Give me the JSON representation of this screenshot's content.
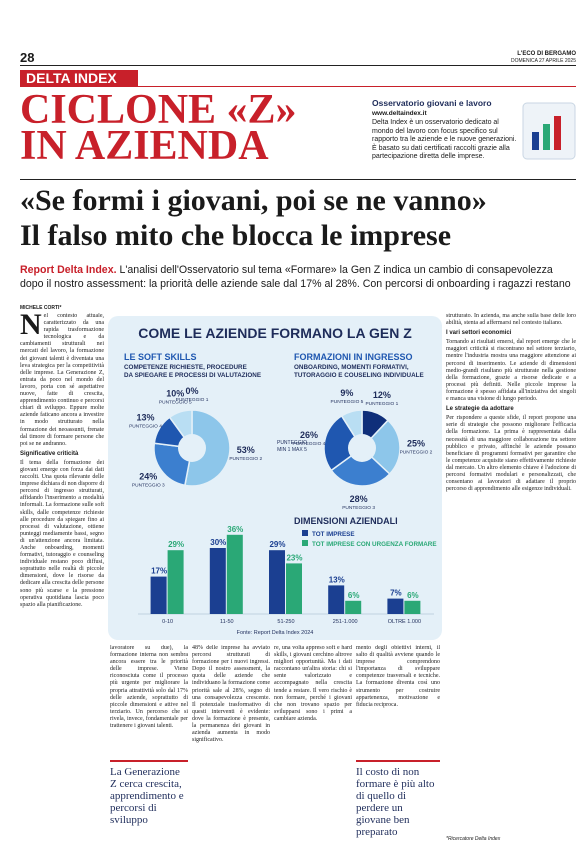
{
  "header": {
    "page_number": "28",
    "publication": "L'ECO DI BERGAMO",
    "date": "DOMENICA 27 APRILE 2025",
    "section": "DELTA INDEX"
  },
  "headline": [
    "CICLONE «Z»",
    "IN AZIENDA"
  ],
  "sidebar": {
    "title": "Osservatorio giovani e lavoro",
    "url": "www.deltaindex.it",
    "text": "Delta Index è un osservatorio dedicato al mondo del lavoro con focus specifico sul rapporto tra le aziende e le nuove generazioni. È basato su dati certificati raccolti grazie alla partecipazione diretta delle imprese."
  },
  "title": "«Se formi i giovani, poi se ne vanno»",
  "subtitle": "Il falso mito che blocca le imprese",
  "lead": {
    "label": "Report Delta Index.",
    "text": "L'analisi dell'Osservatorio sul tema «Formare» la Gen Z indica un cambio di consapevolezza dopo il nostro assessment: la priorità delle aziende sale dal 17% al 28%. Con percorsi di onboarding i ragazzi restano"
  },
  "byline": "MICHELE CORTI*",
  "infographic": {
    "title": "COME LE AZIENDE FORMANO LA GEN Z",
    "pies": [
      {
        "type": "pie",
        "title": "LE SOFT SKILLS",
        "subtitle": [
          "COMPETENZE RICHIESTE, PROCEDURE",
          "DA SPIEGARE E PROCESSI DI VALUTAZIONE"
        ],
        "categories": [
          "PUNTEGGIO 1",
          "PUNTEGGIO 2",
          "PUNTEGGIO 3",
          "PUNTEGGIO 4",
          "PUNTEGGIO 5"
        ],
        "values": [
          0,
          53,
          24,
          13,
          10
        ],
        "value_labels": [
          "0%",
          "53%",
          "24%",
          "13%",
          "10%"
        ],
        "colors": [
          "#0f2f7a",
          "#8dc6ea",
          "#3c7fcf",
          "#1f57b0",
          "#b9def3"
        ]
      },
      {
        "type": "pie",
        "title": "FORMAZIONI IN INGRESSO",
        "subtitle": [
          "ONBOARDING, MOMENTI FORMATIVI,",
          "TUTORAGGIO E COUSELING INDIVIDUALE"
        ],
        "note": [
          "PUNTEGGIO",
          "MIN 1 MAX 5"
        ],
        "categories": [
          "PUNTEGGIO 1",
          "PUNTEGGIO 2",
          "PUNTEGGIO 3",
          "PUNTEGGIO 4",
          "PUNTEGGIO 5"
        ],
        "values": [
          12,
          25,
          28,
          26,
          9
        ],
        "value_labels": [
          "12%",
          "25%",
          "28%",
          "26%",
          "9%"
        ],
        "colors": [
          "#0f2f7a",
          "#8dc6ea",
          "#3c7fcf",
          "#1f57b0",
          "#b9def3"
        ]
      }
    ],
    "bars": {
      "type": "bar",
      "title": "DIMENSIONI AZIENDALI",
      "categories": [
        "0-10",
        "11-50",
        "51-250",
        "251-1.000",
        "OLTRE 1.000"
      ],
      "series": [
        {
          "name": "TOT IMPRESE",
          "color": "#1b3f91",
          "values": [
            17,
            30,
            29,
            13,
            7
          ],
          "value_labels": [
            "17%",
            "30%",
            "29%",
            "13%",
            "7%"
          ]
        },
        {
          "name": "TOT IMPRESE CON URGENZA FORMARE",
          "color": "#2aa876",
          "values": [
            29,
            36,
            23,
            6,
            6
          ],
          "value_labels": [
            "29%",
            "36%",
            "23%",
            "6%",
            "6%"
          ]
        }
      ]
    },
    "source": "Fonte: Report Delta Index 2024"
  },
  "body": {
    "col1": [
      "Nel contesto attuale, caratterizzato da una rapida trasformazione tecnologica e da cambiamenti strutturali nei mercati del lavoro, la formazione dei giovani talenti è diventata una leva strategica per la competitività delle imprese. La Generazione Z, entrata da poco nel mondo del lavoro, porta con sé aspettative nuove, fatte di crescita, apprendimento continuo e percorsi chiari di sviluppo. Eppure molte aziende faticano ancora a investire in modo strutturato nella formazione dei neoassunti, frenate dal timore di formare persone che poi se ne andranno.",
      "Significative criticità",
      "Il tema della formazione dei giovani emerge con forza dai dati raccolti. Una quota rilevante delle imprese dichiara di non disporre di percorsi di ingresso strutturati, affidando l'inserimento a modalità informali. La formazione sulle soft skills, dalle competenze richieste alle procedure da spiegare fino ai processi di valutazione, ottiene punteggi mediamente bassi, segno di un'attenzione ancora limitata. Anche onboarding, momenti formativi, tutoraggio e counseling individuale restano poco diffusi, soprattutto nelle realtà di piccole dimensioni, dove le risorse da dedicare alla crescita delle persone sono più scarse e la pressione operativa quotidiana lascia poco spazio alla pianificazione."
    ],
    "col2": "lavoratore su due), la formazione interna non sembra ancora essere tra le priorità delle imprese. Viene riconosciuta come il processo più urgente per migliorare la propria attrattività solo dal 17% delle aziende, soprattutto di piccole dimensioni e attive nel terziario. Un percorso che si rivela, invece, fondamentale per trattenere i giovani talenti.",
    "col3": "48% delle imprese ha avviato percorsi strutturati di formazione per i nuovi ingressi. Dopo il nostro assessment, la quota delle aziende che individuano la formazione come priorità sale al 28%, segno di una consapevolezza crescente. Il potenziale trasformativo di questi interventi è evidente: dove la formazione è presente, la permanenza dei giovani in azienda aumenta in modo significativo.",
    "col4": "re, una volta appreso soft e hard skills, i giovani cerchino altrove migliori opportunità. Ma i dati raccontano un'altra storia: chi si sente valorizzato e accompagnato nella crescita tende a restare. Il vero rischio è non formare, perché i giovani che non trovano spazio per svilupparsi sono i primi a cambiare azienda.",
    "col5": "mento degli obiettivi interni, il salto di qualità avviene quando le imprese comprendono l'importanza di sviluppare competenze trasversali e tecniche. La formazione diventa così uno strumento per costruire appartenenza, motivazione e fiducia reciproca.",
    "quote1": "La Generazione Z cerca crescita, apprendimento e percorsi di sviluppo",
    "quote2": "Il costo di non formare è più alto di quello di perdere un giovane ben preparato",
    "col6": [
      "strutturato. In azienda, ma anche sulla base delle loro abilità, stenta ad affermarsi nel contesto italiano.",
      "I vari settori economici",
      "Tornando ai risultati emersi, dal report emerge che le maggiori criticità si riscontrano nel settore terziario, mentre l'industria mostra una maggiore attenzione ai percorsi di inserimento. Le aziende di dimensioni medio-grandi risultano più strutturate nella gestione della formazione, grazie a risorse dedicate e a processi più definiti. Nelle piccole imprese la formazione è spesso affidata all'iniziativa dei singoli e manca una visione di lungo periodo.",
      "Le strategie da adottare",
      "Per rispondere a queste sfide, il report propone una serie di strategie che possono migliorare l'efficacia della formazione. La prima è rappresentata dalla necessità di una maggiore collaborazione tra settore pubblico e privato, affinché le aziende possano beneficiare di programmi formativi per garantire che le competenze acquisite siano effettivamente richieste dal mercato. Un altro elemento chiave è l'adozione di percorsi formativi modulari e personalizzati, che consentano ai lavoratori di adattare il proprio percorso di apprendimento alle esigenze individuali."
    ],
    "footnote": "*Ricercatore Delta Index"
  }
}
